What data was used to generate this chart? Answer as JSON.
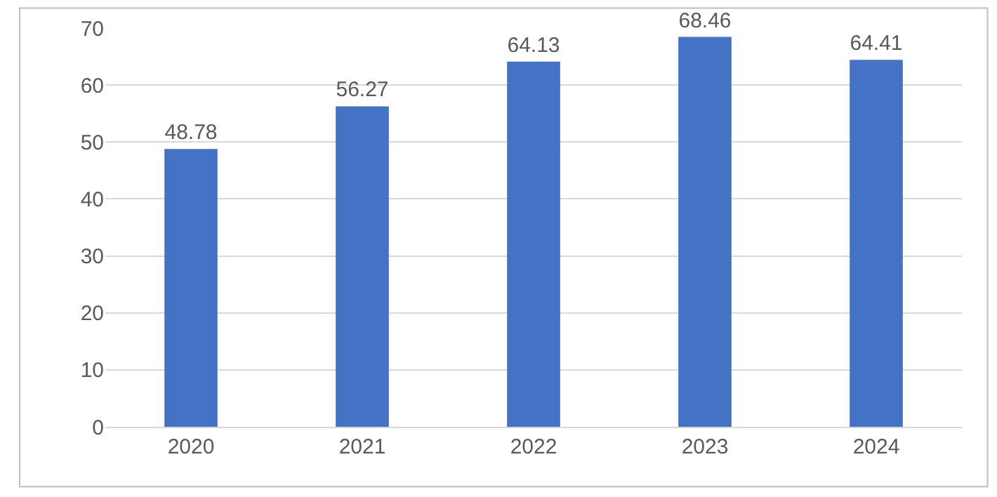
{
  "chart_data": {
    "type": "bar",
    "categories": [
      "2020",
      "2021",
      "2022",
      "2023",
      "2024"
    ],
    "values": [
      48.78,
      56.27,
      64.13,
      68.46,
      64.41
    ],
    "color": "#4472c4",
    "ylim": [
      0,
      70
    ],
    "yticks": [
      0,
      10,
      20,
      30,
      40,
      50,
      60,
      70
    ],
    "grid": "y",
    "data_labels": true,
    "legend": false
  }
}
